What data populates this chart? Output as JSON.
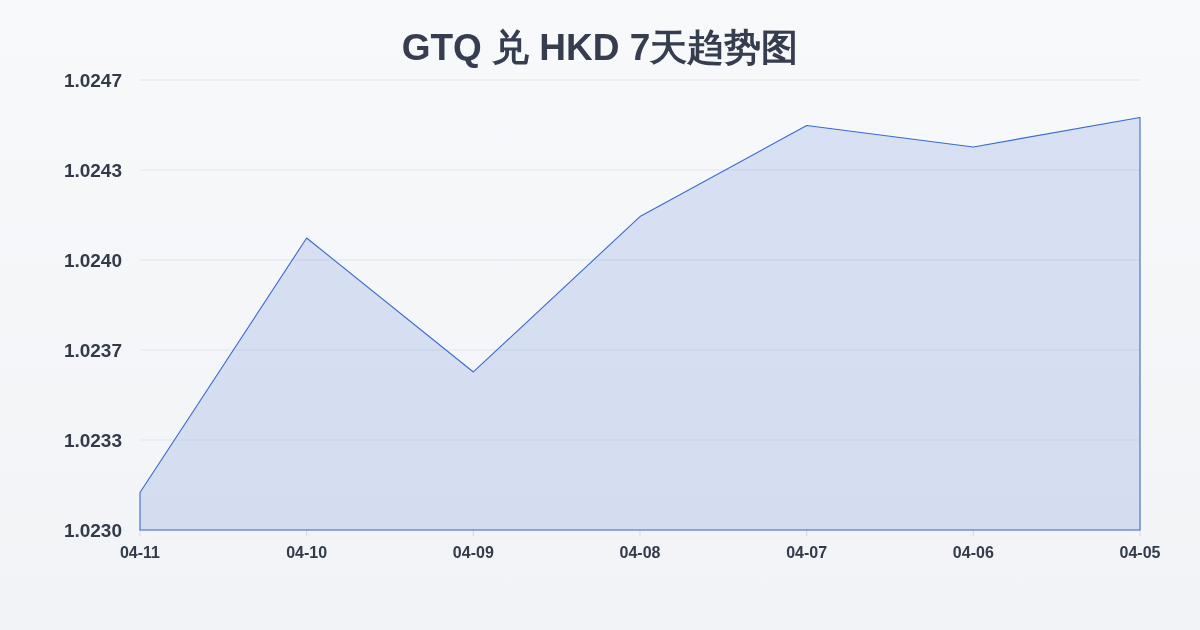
{
  "chart_data": {
    "type": "area",
    "title": "GTQ 兑 HKD 7天趋势图",
    "categories": [
      "04-11",
      "04-10",
      "04-09",
      "04-08",
      "04-07",
      "04-06",
      "04-05"
    ],
    "series": [
      {
        "color": "#3a6bd0",
        "values": [
          1.02314,
          1.02409,
          1.02359,
          1.02417,
          1.02451,
          1.02443,
          1.02454
        ]
      }
    ],
    "ylim": [
      1.023,
      1.02468
    ],
    "yticks": [
      {
        "value": 1.023,
        "label": "1.0230"
      },
      {
        "value": 1.023336,
        "label": "1.0233"
      },
      {
        "value": 1.023672,
        "label": "1.0237"
      },
      {
        "value": 1.024008,
        "label": "1.0240"
      },
      {
        "value": 1.024344,
        "label": "1.0243"
      },
      {
        "value": 1.02468,
        "label": "1.0247"
      }
    ],
    "grid": "y"
  }
}
